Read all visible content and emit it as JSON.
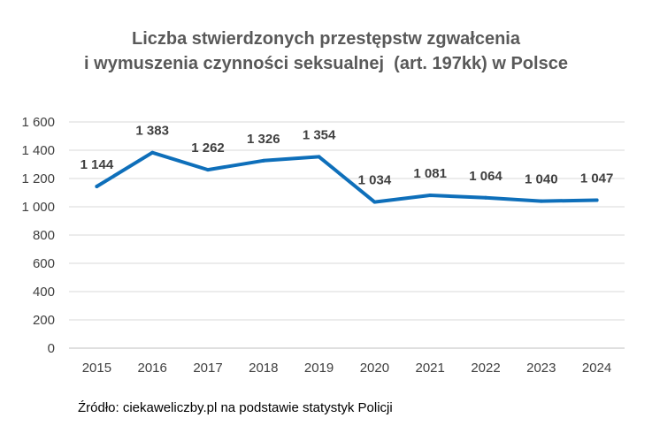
{
  "title_lines": [
    "Liczba stwierdzonych przestępstw zgwałcenia",
    "i wymuszenia czynności seksualnej  (art. 197kk) w Polsce"
  ],
  "source": "Źródło: ciekaweliczby.pl na podstawie statystyk Policji",
  "colors": {
    "line": "#0e6fba",
    "grid": "#d9d9d9",
    "axis_text": "#404040",
    "label_text": "#404040"
  },
  "chart_data": {
    "type": "line",
    "categories": [
      "2015",
      "2016",
      "2017",
      "2018",
      "2019",
      "2020",
      "2021",
      "2022",
      "2023",
      "2024"
    ],
    "values": [
      1144,
      1383,
      1262,
      1326,
      1354,
      1034,
      1081,
      1064,
      1040,
      1047
    ],
    "data_labels": [
      "1 144",
      "1 383",
      "1 262",
      "1 326",
      "1 354",
      "1 034",
      "1 081",
      "1 064",
      "1 040",
      "1 047"
    ],
    "y_ticks": [
      0,
      200,
      400,
      600,
      800,
      1000,
      1200,
      1400,
      1600
    ],
    "y_tick_labels": [
      "0",
      "200",
      "400",
      "600",
      "800",
      "1 000",
      "1 200",
      "1 400",
      "1 600"
    ],
    "ylim": [
      0,
      1600
    ],
    "grid": true,
    "legend": "none"
  }
}
